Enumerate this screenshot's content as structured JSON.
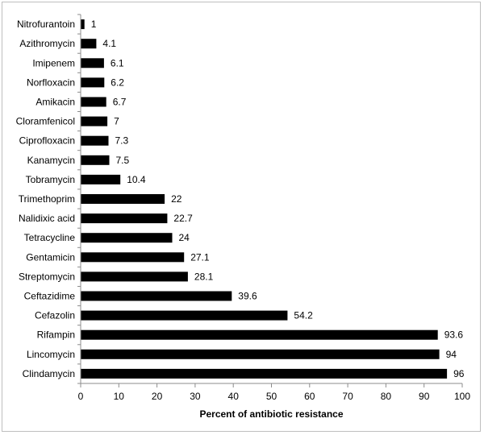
{
  "chart_data": {
    "type": "bar",
    "orientation": "horizontal",
    "title": "",
    "xlabel": "Percent of antibiotic resistance",
    "ylabel": "",
    "categories": [
      "Nitrofurantoin",
      "Azithromycin",
      "Imipenem",
      "Norfloxacin",
      "Amikacin",
      "Cloramfenicol",
      "Ciprofloxacin",
      "Kanamycin",
      "Tobramycin",
      "Trimethoprim",
      "Nalidixic acid",
      "Tetracycline",
      "Gentamicin",
      "Streptomycin",
      "Ceftazidime",
      "Cefazolin",
      "Rifampin",
      "Lincomycin",
      "Clindamycin"
    ],
    "values": [
      1,
      4.1,
      6.1,
      6.2,
      6.7,
      7,
      7.3,
      7.5,
      10.4,
      22,
      22.7,
      24,
      27.1,
      28.1,
      39.6,
      54.2,
      93.6,
      94,
      96
    ],
    "value_labels": [
      "1",
      "4.1",
      "6.1",
      "6.2",
      "6.7",
      "7",
      "7.3",
      "7.5",
      "10.4",
      "22",
      "22.7",
      "24",
      "27.1",
      "28.1",
      "39.6",
      "54.2",
      "93.6",
      "94",
      "96"
    ],
    "xlim": [
      0,
      100
    ],
    "xticks": [
      "0",
      "10",
      "20",
      "30",
      "40",
      "50",
      "60",
      "70",
      "80",
      "90",
      "100"
    ],
    "bar_color": "#000000",
    "grid": false,
    "legend": "none"
  }
}
